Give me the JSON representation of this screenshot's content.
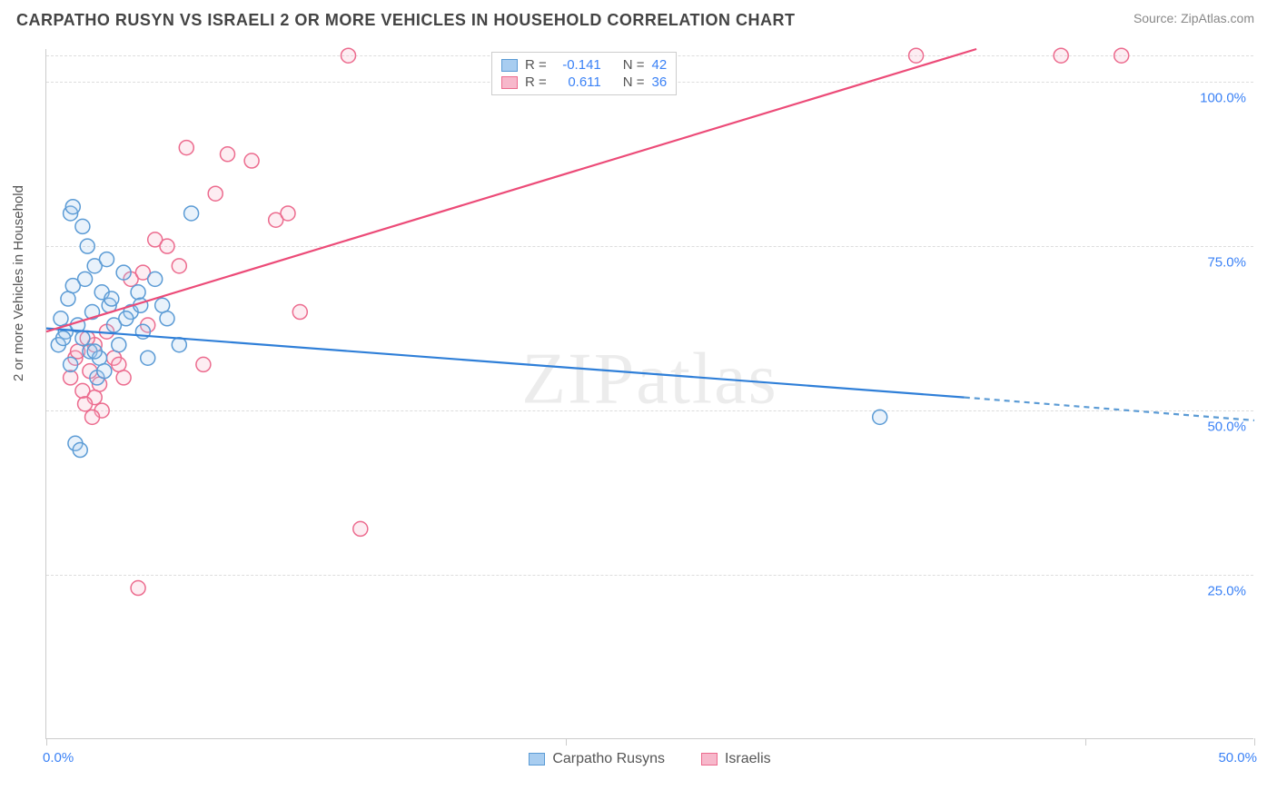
{
  "header": {
    "title": "CARPATHO RUSYN VS ISRAELI 2 OR MORE VEHICLES IN HOUSEHOLD CORRELATION CHART",
    "source_prefix": "Source: ",
    "source_name": "ZipAtlas.com"
  },
  "chart": {
    "type": "scatter",
    "ylabel": "2 or more Vehicles in Household",
    "watermark": "ZIPatlas",
    "xlim": [
      0,
      50
    ],
    "ylim": [
      0,
      105
    ],
    "x_ticks": [
      0,
      21.5,
      43,
      50
    ],
    "x_tick_labels": {
      "0": "0.0%",
      "50": "50.0%"
    },
    "y_gridlines": [
      25,
      50,
      75,
      100,
      104
    ],
    "y_tick_labels": {
      "25": "25.0%",
      "50": "50.0%",
      "75": "75.0%",
      "100": "100.0%"
    },
    "background_color": "#ffffff",
    "grid_color": "#dddddd",
    "axis_color": "#cccccc",
    "tick_label_color": "#3b82f6",
    "marker_radius": 8,
    "marker_stroke_width": 1.5,
    "marker_fill_opacity": 0.25,
    "line_width": 2.2,
    "series": {
      "blue": {
        "label": "Carpatho Rusyns",
        "color_stroke": "#5b9bd5",
        "color_fill": "#a8cdf0",
        "R": "-0.141",
        "N": "42",
        "points": [
          [
            0.5,
            60
          ],
          [
            0.8,
            62
          ],
          [
            1.0,
            80
          ],
          [
            1.1,
            81
          ],
          [
            1.3,
            63
          ],
          [
            1.5,
            78
          ],
          [
            1.6,
            70
          ],
          [
            1.8,
            59
          ],
          [
            1.9,
            65
          ],
          [
            2.0,
            72
          ],
          [
            2.1,
            55
          ],
          [
            2.2,
            58
          ],
          [
            2.3,
            68
          ],
          [
            2.5,
            73
          ],
          [
            2.6,
            66
          ],
          [
            1.2,
            45
          ],
          [
            1.4,
            44
          ],
          [
            0.7,
            61
          ],
          [
            0.9,
            67
          ],
          [
            1.7,
            75
          ],
          [
            2.8,
            63
          ],
          [
            3.0,
            60
          ],
          [
            3.2,
            71
          ],
          [
            3.5,
            65
          ],
          [
            3.8,
            68
          ],
          [
            4.0,
            62
          ],
          [
            4.2,
            58
          ],
          [
            4.5,
            70
          ],
          [
            4.8,
            66
          ],
          [
            5.0,
            64
          ],
          [
            5.5,
            60
          ],
          [
            6.0,
            80
          ],
          [
            2.4,
            56
          ],
          [
            1.1,
            69
          ],
          [
            0.6,
            64
          ],
          [
            1.0,
            57
          ],
          [
            1.5,
            61
          ],
          [
            2.0,
            59
          ],
          [
            2.7,
            67
          ],
          [
            3.3,
            64
          ],
          [
            3.9,
            66
          ],
          [
            34.5,
            49
          ]
        ],
        "trend": {
          "x1": 0,
          "y1": 62.5,
          "x2": 38,
          "y2": 52,
          "dash_x2": 50,
          "dash_y2": 48.5
        }
      },
      "pink": {
        "label": "Israelis",
        "color_stroke": "#ec6b8e",
        "color_fill": "#f7b8cb",
        "R": "0.611",
        "N": "36",
        "points": [
          [
            1.0,
            55
          ],
          [
            1.2,
            58
          ],
          [
            1.5,
            53
          ],
          [
            1.8,
            56
          ],
          [
            2.0,
            60
          ],
          [
            2.2,
            54
          ],
          [
            2.5,
            62
          ],
          [
            2.8,
            58
          ],
          [
            3.0,
            57
          ],
          [
            3.5,
            70
          ],
          [
            4.0,
            71
          ],
          [
            4.5,
            76
          ],
          [
            5.0,
            75
          ],
          [
            5.5,
            72
          ],
          [
            5.8,
            90
          ],
          [
            6.5,
            57
          ],
          [
            7.0,
            83
          ],
          [
            7.5,
            89
          ],
          [
            8.5,
            88
          ],
          [
            9.5,
            79
          ],
          [
            10.0,
            80
          ],
          [
            10.5,
            65
          ],
          [
            12.5,
            104
          ],
          [
            2.0,
            52
          ],
          [
            2.3,
            50
          ],
          [
            1.6,
            51
          ],
          [
            1.9,
            49
          ],
          [
            3.2,
            55
          ],
          [
            3.8,
            23
          ],
          [
            13.0,
            32
          ],
          [
            36.0,
            104
          ],
          [
            42.0,
            104
          ],
          [
            44.5,
            104
          ],
          [
            1.3,
            59
          ],
          [
            1.7,
            61
          ],
          [
            4.2,
            63
          ]
        ],
        "trend": {
          "x1": 0,
          "y1": 62,
          "x2": 38.5,
          "y2": 105
        }
      }
    }
  },
  "legend_top": {
    "r_label": "R =",
    "n_label": "N ="
  }
}
